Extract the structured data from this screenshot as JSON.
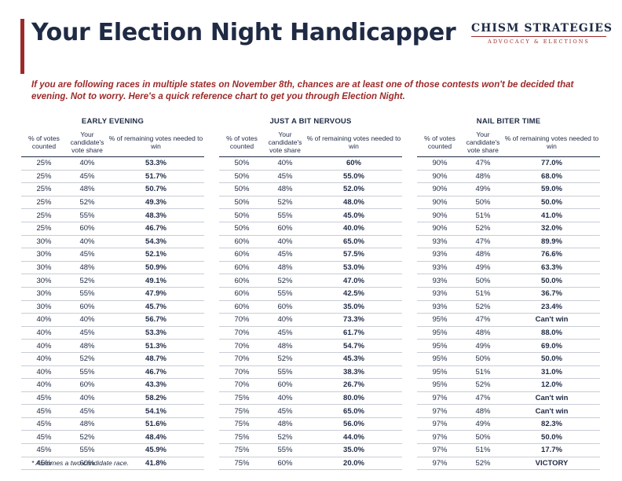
{
  "title": "Your Election Night Handicapper",
  "brand": {
    "name": "CHISM STRATEGIES",
    "tagline": "ADVOCACY & ELECTIONS"
  },
  "intro": "If you are following races in multiple states on November 8th, chances are at least one of those contests won't be decided that evening. Not to worry. Here's a quick reference chart to get you through Election Night.",
  "columns": {
    "counted": "% of votes counted",
    "share": "Your candidate's vote share",
    "needed": "% of remaining votes needed to win"
  },
  "tables": [
    {
      "title": "EARLY EVENING",
      "rows": [
        [
          "25%",
          "40%",
          "53.3%"
        ],
        [
          "25%",
          "45%",
          "51.7%"
        ],
        [
          "25%",
          "48%",
          "50.7%"
        ],
        [
          "25%",
          "52%",
          "49.3%"
        ],
        [
          "25%",
          "55%",
          "48.3%"
        ],
        [
          "25%",
          "60%",
          "46.7%"
        ],
        [
          "30%",
          "40%",
          "54.3%"
        ],
        [
          "30%",
          "45%",
          "52.1%"
        ],
        [
          "30%",
          "48%",
          "50.9%"
        ],
        [
          "30%",
          "52%",
          "49.1%"
        ],
        [
          "30%",
          "55%",
          "47.9%"
        ],
        [
          "30%",
          "60%",
          "45.7%"
        ],
        [
          "40%",
          "40%",
          "56.7%"
        ],
        [
          "40%",
          "45%",
          "53.3%"
        ],
        [
          "40%",
          "48%",
          "51.3%"
        ],
        [
          "40%",
          "52%",
          "48.7%"
        ],
        [
          "40%",
          "55%",
          "46.7%"
        ],
        [
          "40%",
          "60%",
          "43.3%"
        ],
        [
          "45%",
          "40%",
          "58.2%"
        ],
        [
          "45%",
          "45%",
          "54.1%"
        ],
        [
          "45%",
          "48%",
          "51.6%"
        ],
        [
          "45%",
          "52%",
          "48.4%"
        ],
        [
          "45%",
          "55%",
          "45.9%"
        ],
        [
          "45%",
          "60%",
          "41.8%"
        ]
      ]
    },
    {
      "title": "JUST A BIT NERVOUS",
      "rows": [
        [
          "50%",
          "40%",
          "60%"
        ],
        [
          "50%",
          "45%",
          "55.0%"
        ],
        [
          "50%",
          "48%",
          "52.0%"
        ],
        [
          "50%",
          "52%",
          "48.0%"
        ],
        [
          "50%",
          "55%",
          "45.0%"
        ],
        [
          "50%",
          "60%",
          "40.0%"
        ],
        [
          "60%",
          "40%",
          "65.0%"
        ],
        [
          "60%",
          "45%",
          "57.5%"
        ],
        [
          "60%",
          "48%",
          "53.0%"
        ],
        [
          "60%",
          "52%",
          "47.0%"
        ],
        [
          "60%",
          "55%",
          "42.5%"
        ],
        [
          "60%",
          "60%",
          "35.0%"
        ],
        [
          "70%",
          "40%",
          "73.3%"
        ],
        [
          "70%",
          "45%",
          "61.7%"
        ],
        [
          "70%",
          "48%",
          "54.7%"
        ],
        [
          "70%",
          "52%",
          "45.3%"
        ],
        [
          "70%",
          "55%",
          "38.3%"
        ],
        [
          "70%",
          "60%",
          "26.7%"
        ],
        [
          "75%",
          "40%",
          "80.0%"
        ],
        [
          "75%",
          "45%",
          "65.0%"
        ],
        [
          "75%",
          "48%",
          "56.0%"
        ],
        [
          "75%",
          "52%",
          "44.0%"
        ],
        [
          "75%",
          "55%",
          "35.0%"
        ],
        [
          "75%",
          "60%",
          "20.0%"
        ]
      ]
    },
    {
      "title": "NAIL BITER TIME",
      "rows": [
        [
          "90%",
          "47%",
          "77.0%"
        ],
        [
          "90%",
          "48%",
          "68.0%"
        ],
        [
          "90%",
          "49%",
          "59.0%"
        ],
        [
          "90%",
          "50%",
          "50.0%"
        ],
        [
          "90%",
          "51%",
          "41.0%"
        ],
        [
          "90%",
          "52%",
          "32.0%"
        ],
        [
          "93%",
          "47%",
          "89.9%"
        ],
        [
          "93%",
          "48%",
          "76.6%"
        ],
        [
          "93%",
          "49%",
          "63.3%"
        ],
        [
          "93%",
          "50%",
          "50.0%"
        ],
        [
          "93%",
          "51%",
          "36.7%"
        ],
        [
          "93%",
          "52%",
          "23.4%"
        ],
        [
          "95%",
          "47%",
          "Can't win"
        ],
        [
          "95%",
          "48%",
          "88.0%"
        ],
        [
          "95%",
          "49%",
          "69.0%"
        ],
        [
          "95%",
          "50%",
          "50.0%"
        ],
        [
          "95%",
          "51%",
          "31.0%"
        ],
        [
          "95%",
          "52%",
          "12.0%"
        ],
        [
          "97%",
          "47%",
          "Can't win"
        ],
        [
          "97%",
          "48%",
          "Can't win"
        ],
        [
          "97%",
          "49%",
          "82.3%"
        ],
        [
          "97%",
          "50%",
          "50.0%"
        ],
        [
          "97%",
          "51%",
          "17.7%"
        ],
        [
          "97%",
          "52%",
          "VICTORY"
        ]
      ]
    }
  ],
  "footnote": "* Assumes a two-candidate race."
}
